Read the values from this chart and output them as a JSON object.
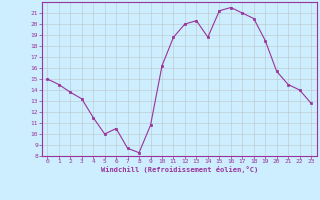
{
  "x": [
    0,
    1,
    2,
    3,
    4,
    5,
    6,
    7,
    8,
    9,
    10,
    11,
    12,
    13,
    14,
    15,
    16,
    17,
    18,
    19,
    20,
    21,
    22,
    23
  ],
  "y": [
    15.0,
    14.5,
    13.8,
    13.2,
    11.5,
    10.0,
    10.5,
    8.7,
    8.3,
    10.8,
    16.2,
    18.8,
    20.0,
    20.3,
    18.8,
    21.2,
    21.5,
    21.0,
    20.5,
    18.5,
    15.7,
    14.5,
    14.0,
    12.8
  ],
  "line_color": "#993399",
  "marker_color": "#993399",
  "bg_color": "#cceeff",
  "grid_color": "#bbbbbb",
  "axis_label_color": "#993399",
  "tick_label_color": "#993399",
  "xlabel": "Windchill (Refroidissement éolien,°C)",
  "ylim": [
    8,
    22
  ],
  "yticks": [
    8,
    9,
    10,
    11,
    12,
    13,
    14,
    15,
    16,
    17,
    18,
    19,
    20,
    21
  ],
  "xticks": [
    0,
    1,
    2,
    3,
    4,
    5,
    6,
    7,
    8,
    9,
    10,
    11,
    12,
    13,
    14,
    15,
    16,
    17,
    18,
    19,
    20,
    21,
    22,
    23
  ],
  "border_color": "#993399"
}
